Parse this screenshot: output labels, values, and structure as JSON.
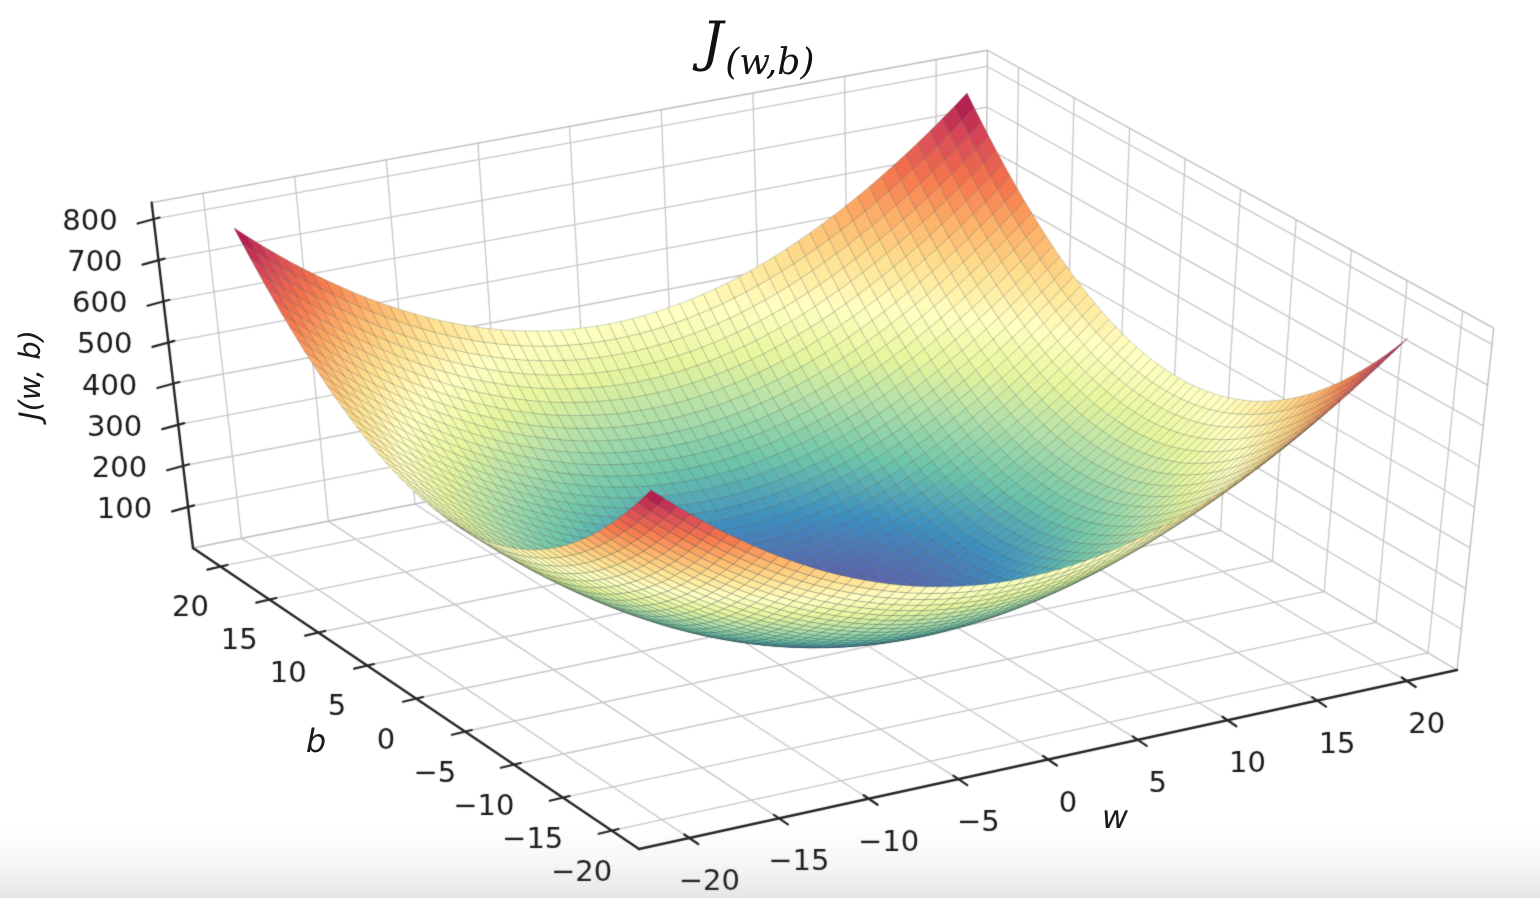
{
  "title": {
    "main": "J",
    "subscript": "(w,b)"
  },
  "chart_data": {
    "type": "surface",
    "surface_function": "J(w,b) = w^2 + b^2",
    "x_axis": {
      "label": "w",
      "tick_values": [
        -20,
        -15,
        -10,
        -5,
        0,
        5,
        10,
        15,
        20
      ],
      "tick_labels": [
        "−20",
        "−15",
        "−10",
        "−5",
        "0",
        "5",
        "10",
        "15",
        "20"
      ],
      "range": [
        -20,
        20
      ]
    },
    "y_axis": {
      "label": "b",
      "tick_values": [
        -20,
        -15,
        -10,
        -5,
        0,
        5,
        10,
        15,
        20
      ],
      "tick_labels": [
        "−20",
        "−15",
        "−10",
        "−5",
        "0",
        "5",
        "10",
        "15",
        "20"
      ],
      "range": [
        -20,
        20
      ]
    },
    "z_axis": {
      "label": "J(w, b)",
      "tick_values": [
        100,
        200,
        300,
        400,
        500,
        600,
        700,
        800
      ],
      "tick_labels": [
        "100",
        "200",
        "300",
        "400",
        "500",
        "600",
        "700",
        "800"
      ],
      "range": [
        0,
        800
      ]
    },
    "mesh_divisions": 60,
    "colormap": {
      "name": "Spectral_r",
      "stops": [
        [
          0.0,
          "#5e4fa2"
        ],
        [
          0.1,
          "#3288bd"
        ],
        [
          0.2,
          "#66c2a5"
        ],
        [
          0.3,
          "#abdda4"
        ],
        [
          0.4,
          "#e6f598"
        ],
        [
          0.5,
          "#ffffbf"
        ],
        [
          0.6,
          "#fee08b"
        ],
        [
          0.7,
          "#fdae61"
        ],
        [
          0.8,
          "#f46d43"
        ],
        [
          0.9,
          "#d53e4f"
        ],
        [
          1.0,
          "#9e0142"
        ]
      ]
    },
    "styles": {
      "axis_line": "#262626",
      "grid_line": "#c8c8c8",
      "pane_edge": "#bcbcbc",
      "mesh_edge": "rgba(35,45,40,0.34)",
      "tick_label": "#1a1a1a",
      "background": "#ffffff"
    }
  }
}
